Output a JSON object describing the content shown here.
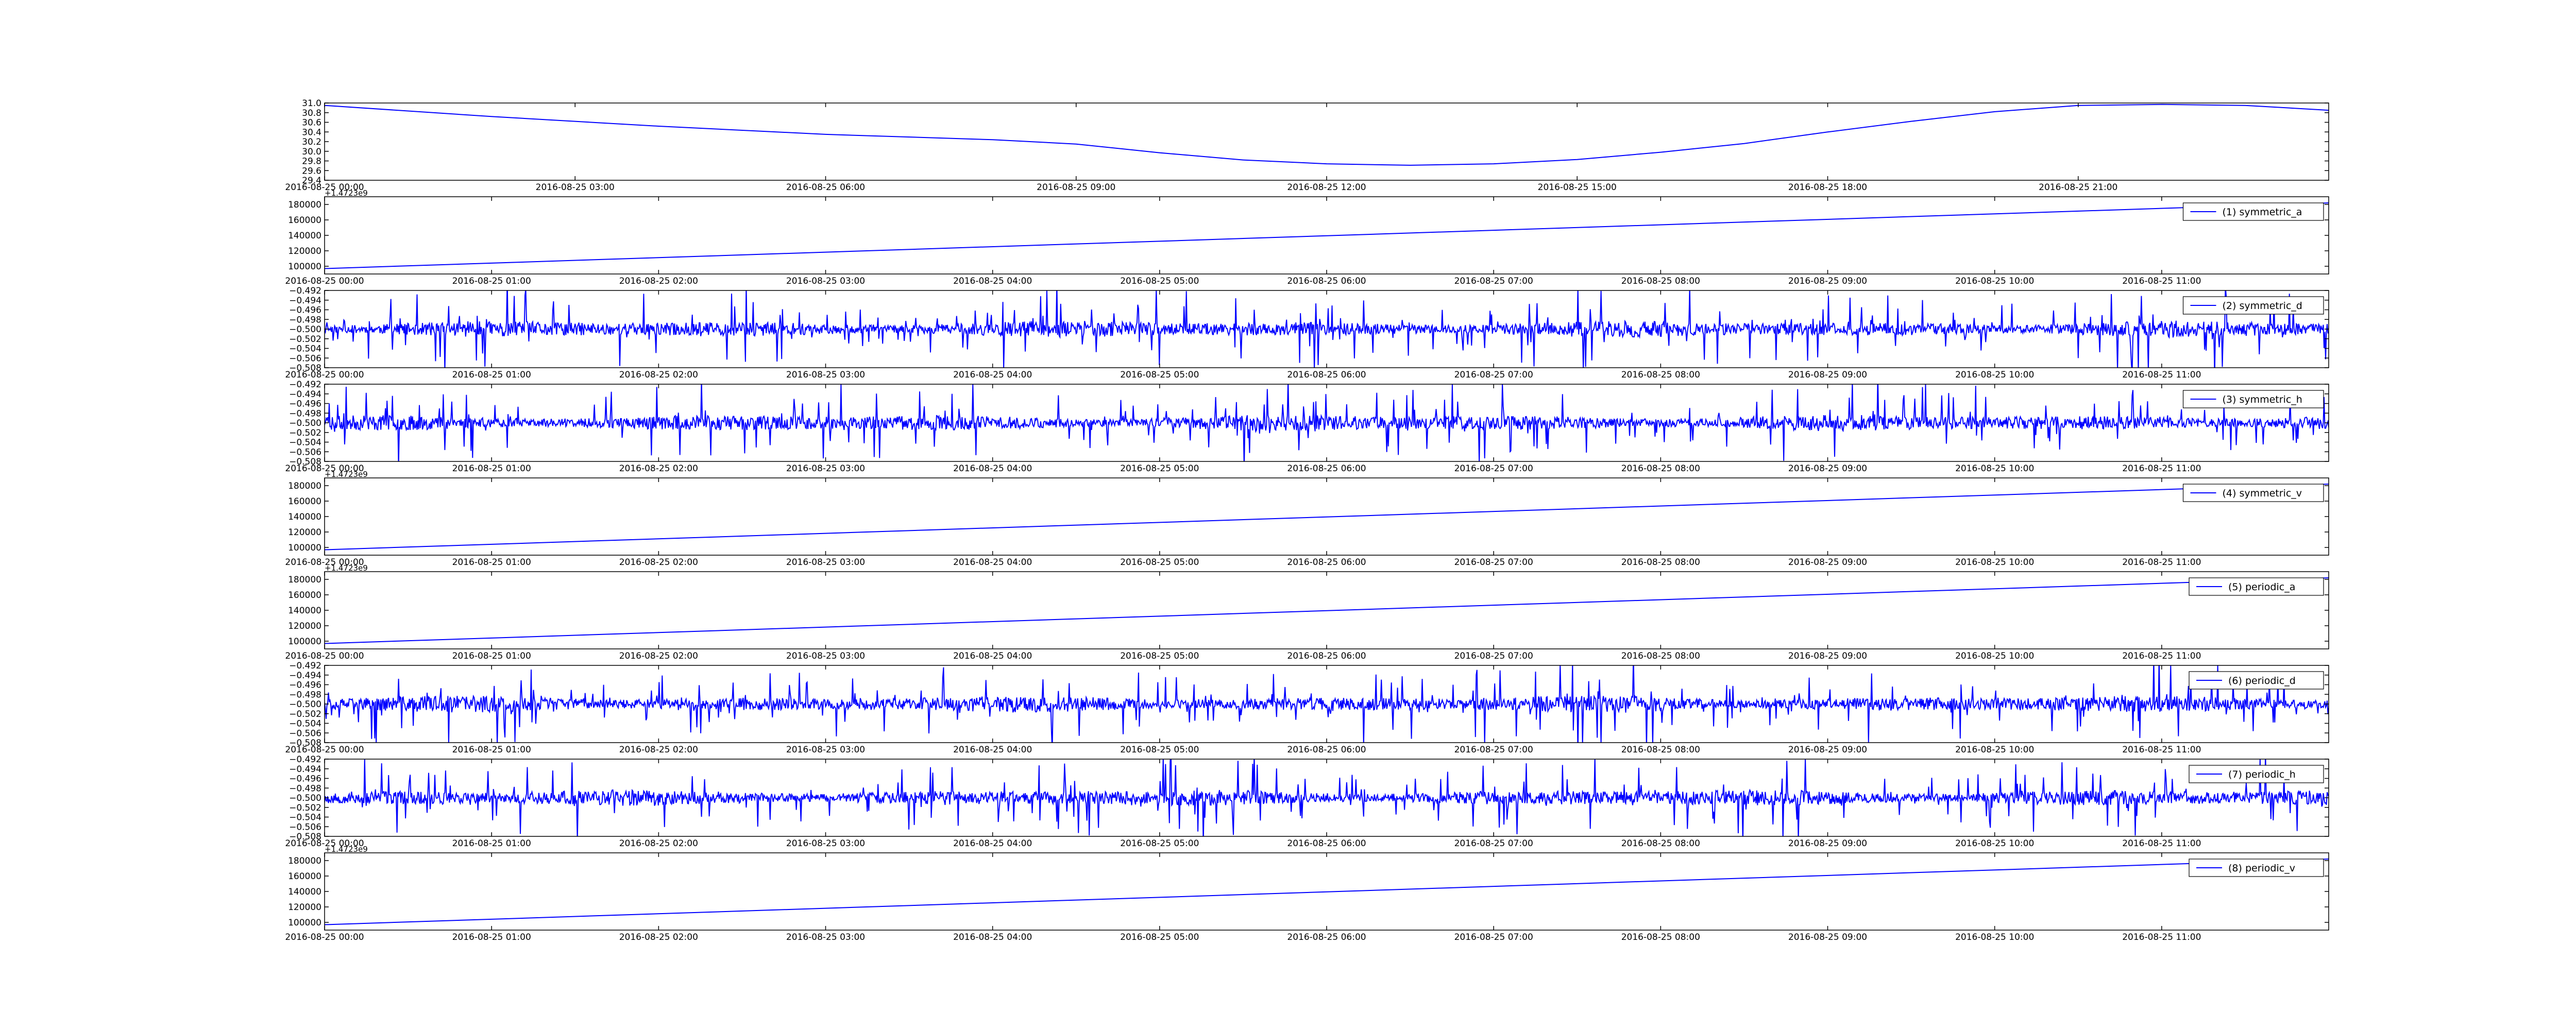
{
  "figure": {
    "background": "#ffffff",
    "line_color": "#0000ff"
  },
  "chart_data": [
    {
      "type": "line",
      "x_type": "datetime",
      "xlim": [
        "2016-08-25 00:00",
        "2016-08-26 00:00"
      ],
      "x_ticks": [
        "2016-08-25 00:00",
        "2016-08-25 03:00",
        "2016-08-25 06:00",
        "2016-08-25 09:00",
        "2016-08-25 12:00",
        "2016-08-25 15:00",
        "2016-08-25 18:00",
        "2016-08-25 21:00"
      ],
      "ylim": [
        29.4,
        31.0
      ],
      "y_ticks": [
        "31.0",
        "30.8",
        "30.6",
        "30.4",
        "30.2",
        "30.0",
        "29.8",
        "29.6",
        "29.4"
      ],
      "series": [
        {
          "x": [
            "2016-08-25 00:00",
            "2016-08-25 02:00",
            "2016-08-25 04:00",
            "2016-08-25 06:00",
            "2016-08-25 08:00",
            "2016-08-25 09:00",
            "2016-08-25 10:00",
            "2016-08-25 11:00",
            "2016-08-25 12:00",
            "2016-08-25 13:00",
            "2016-08-25 14:00",
            "2016-08-25 15:00",
            "2016-08-25 16:00",
            "2016-08-25 17:00",
            "2016-08-25 18:00",
            "2016-08-25 19:00",
            "2016-08-25 20:00",
            "2016-08-25 21:00",
            "2016-08-25 22:00",
            "2016-08-25 23:00",
            "2016-08-26 00:00"
          ],
          "values": [
            30.95,
            30.72,
            30.52,
            30.35,
            30.24,
            30.15,
            29.97,
            29.82,
            29.74,
            29.71,
            29.74,
            29.83,
            29.98,
            30.16,
            30.4,
            30.62,
            30.82,
            30.95,
            30.97,
            30.95,
            30.85
          ]
        }
      ]
    },
    {
      "type": "line",
      "x_type": "datetime",
      "xlim": [
        "2016-08-25 00:00",
        "2016-08-25 12:00"
      ],
      "x_ticks": [
        "2016-08-25 00:00",
        "2016-08-25 01:00",
        "2016-08-25 02:00",
        "2016-08-25 03:00",
        "2016-08-25 04:00",
        "2016-08-25 05:00",
        "2016-08-25 06:00",
        "2016-08-25 07:00",
        "2016-08-25 08:00",
        "2016-08-25 09:00",
        "2016-08-25 10:00",
        "2016-08-25 11:00"
      ],
      "ylim": [
        90000,
        190000
      ],
      "y_ticks": [
        "180000",
        "160000",
        "140000",
        "120000",
        "100000"
      ],
      "offset_label": "+1.4723e9",
      "legend": "upper right",
      "series": [
        {
          "name": "(1) symmetric_a",
          "start": 97000,
          "end": 182000
        }
      ]
    },
    {
      "type": "line",
      "x_type": "datetime",
      "signal": "noise",
      "xlim": [
        "2016-08-25 00:00",
        "2016-08-25 12:00"
      ],
      "x_ticks": [
        "2016-08-25 00:00",
        "2016-08-25 01:00",
        "2016-08-25 02:00",
        "2016-08-25 03:00",
        "2016-08-25 04:00",
        "2016-08-25 05:00",
        "2016-08-25 06:00",
        "2016-08-25 07:00",
        "2016-08-25 08:00",
        "2016-08-25 09:00",
        "2016-08-25 10:00",
        "2016-08-25 11:00"
      ],
      "ylim": [
        -0.508,
        -0.492
      ],
      "y_ticks": [
        "−0.492",
        "−0.494",
        "−0.496",
        "−0.498",
        "−0.500",
        "−0.502",
        "−0.504",
        "−0.506",
        "−0.508"
      ],
      "legend": "upper right",
      "series": [
        {
          "name": "(2) symmetric_d",
          "center": -0.5,
          "seed": 11
        }
      ]
    },
    {
      "type": "line",
      "x_type": "datetime",
      "signal": "noise",
      "xlim": [
        "2016-08-25 00:00",
        "2016-08-25 12:00"
      ],
      "x_ticks": [
        "2016-08-25 00:00",
        "2016-08-25 01:00",
        "2016-08-25 02:00",
        "2016-08-25 03:00",
        "2016-08-25 04:00",
        "2016-08-25 05:00",
        "2016-08-25 06:00",
        "2016-08-25 07:00",
        "2016-08-25 08:00",
        "2016-08-25 09:00",
        "2016-08-25 10:00",
        "2016-08-25 11:00"
      ],
      "ylim": [
        -0.508,
        -0.492
      ],
      "y_ticks": [
        "−0.492",
        "−0.494",
        "−0.496",
        "−0.498",
        "−0.500",
        "−0.502",
        "−0.504",
        "−0.506",
        "−0.508"
      ],
      "legend": "upper right",
      "series": [
        {
          "name": "(3) symmetric_h",
          "center": -0.5,
          "seed": 23
        }
      ]
    },
    {
      "type": "line",
      "x_type": "datetime",
      "xlim": [
        "2016-08-25 00:00",
        "2016-08-25 12:00"
      ],
      "x_ticks": [
        "2016-08-25 00:00",
        "2016-08-25 01:00",
        "2016-08-25 02:00",
        "2016-08-25 03:00",
        "2016-08-25 04:00",
        "2016-08-25 05:00",
        "2016-08-25 06:00",
        "2016-08-25 07:00",
        "2016-08-25 08:00",
        "2016-08-25 09:00",
        "2016-08-25 10:00",
        "2016-08-25 11:00"
      ],
      "ylim": [
        90000,
        190000
      ],
      "y_ticks": [
        "180000",
        "160000",
        "140000",
        "120000",
        "100000"
      ],
      "offset_label": "+1.4723e9",
      "legend": "upper right",
      "series": [
        {
          "name": "(4) symmetric_v",
          "start": 97000,
          "end": 182000
        }
      ]
    },
    {
      "type": "line",
      "x_type": "datetime",
      "xlim": [
        "2016-08-25 00:00",
        "2016-08-25 12:00"
      ],
      "x_ticks": [
        "2016-08-25 00:00",
        "2016-08-25 01:00",
        "2016-08-25 02:00",
        "2016-08-25 03:00",
        "2016-08-25 04:00",
        "2016-08-25 05:00",
        "2016-08-25 06:00",
        "2016-08-25 07:00",
        "2016-08-25 08:00",
        "2016-08-25 09:00",
        "2016-08-25 10:00",
        "2016-08-25 11:00"
      ],
      "ylim": [
        90000,
        190000
      ],
      "y_ticks": [
        "180000",
        "160000",
        "140000",
        "120000",
        "100000"
      ],
      "offset_label": "+1.4723e9",
      "legend": "upper right",
      "series": [
        {
          "name": "(5) periodic_a",
          "start": 97000,
          "end": 182000
        }
      ]
    },
    {
      "type": "line",
      "x_type": "datetime",
      "signal": "noise",
      "xlim": [
        "2016-08-25 00:00",
        "2016-08-25 12:00"
      ],
      "x_ticks": [
        "2016-08-25 00:00",
        "2016-08-25 01:00",
        "2016-08-25 02:00",
        "2016-08-25 03:00",
        "2016-08-25 04:00",
        "2016-08-25 05:00",
        "2016-08-25 06:00",
        "2016-08-25 07:00",
        "2016-08-25 08:00",
        "2016-08-25 09:00",
        "2016-08-25 10:00",
        "2016-08-25 11:00"
      ],
      "ylim": [
        -0.508,
        -0.492
      ],
      "y_ticks": [
        "−0.492",
        "−0.494",
        "−0.496",
        "−0.498",
        "−0.500",
        "−0.502",
        "−0.504",
        "−0.506",
        "−0.508"
      ],
      "legend": "upper right",
      "series": [
        {
          "name": "(6) periodic_d",
          "center": -0.5,
          "seed": 37
        }
      ]
    },
    {
      "type": "line",
      "x_type": "datetime",
      "signal": "noise",
      "xlim": [
        "2016-08-25 00:00",
        "2016-08-25 12:00"
      ],
      "x_ticks": [
        "2016-08-25 00:00",
        "2016-08-25 01:00",
        "2016-08-25 02:00",
        "2016-08-25 03:00",
        "2016-08-25 04:00",
        "2016-08-25 05:00",
        "2016-08-25 06:00",
        "2016-08-25 07:00",
        "2016-08-25 08:00",
        "2016-08-25 09:00",
        "2016-08-25 10:00",
        "2016-08-25 11:00"
      ],
      "ylim": [
        -0.508,
        -0.492
      ],
      "y_ticks": [
        "−0.492",
        "−0.494",
        "−0.496",
        "−0.498",
        "−0.500",
        "−0.502",
        "−0.504",
        "−0.506",
        "−0.508"
      ],
      "legend": "upper right",
      "series": [
        {
          "name": "(7) periodic_h",
          "center": -0.5,
          "seed": 53
        }
      ]
    },
    {
      "type": "line",
      "x_type": "datetime",
      "xlim": [
        "2016-08-25 00:00",
        "2016-08-25 12:00"
      ],
      "x_ticks": [
        "2016-08-25 00:00",
        "2016-08-25 01:00",
        "2016-08-25 02:00",
        "2016-08-25 03:00",
        "2016-08-25 04:00",
        "2016-08-25 05:00",
        "2016-08-25 06:00",
        "2016-08-25 07:00",
        "2016-08-25 08:00",
        "2016-08-25 09:00",
        "2016-08-25 10:00",
        "2016-08-25 11:00"
      ],
      "ylim": [
        90000,
        190000
      ],
      "y_ticks": [
        "180000",
        "160000",
        "140000",
        "120000",
        "100000"
      ],
      "offset_label": "+1.4723e9",
      "legend": "upper right",
      "series": [
        {
          "name": "(8) periodic_v",
          "start": 97000,
          "end": 182000
        }
      ]
    }
  ]
}
